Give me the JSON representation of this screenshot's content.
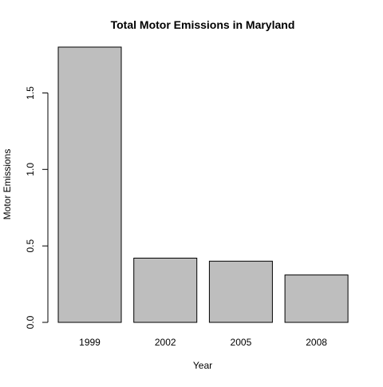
{
  "chart_data": {
    "type": "bar",
    "title": "Total Motor Emissions in Maryland",
    "xlabel": "Year",
    "ylabel": "Motor Emissions",
    "categories": [
      "1999",
      "2002",
      "2005",
      "2008"
    ],
    "values": [
      1.8,
      0.42,
      0.4,
      0.31
    ],
    "ylim": [
      0,
      1.8
    ],
    "yticks": [
      0.0,
      0.5,
      1.0,
      1.5
    ],
    "ytick_labels": [
      "0.0",
      "0.5",
      "1.0",
      "1.5"
    ],
    "grid": false,
    "legend": "none",
    "colors": {
      "bar_fill": "#bebebe",
      "bar_stroke": "#000000",
      "axis": "#000000"
    }
  }
}
